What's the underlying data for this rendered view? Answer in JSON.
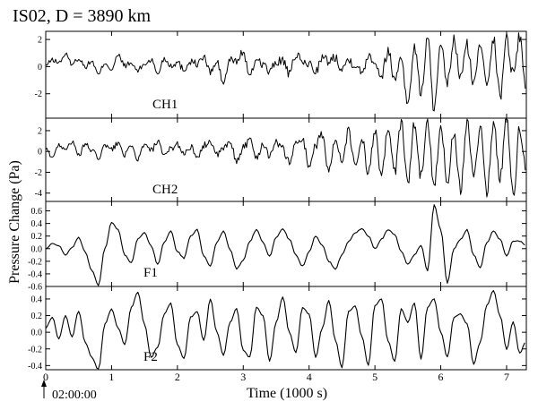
{
  "title": "IS02, D = 3890 km",
  "ylabel": "Pressure Change (Pa)",
  "xlabel": "Time (1000 s)",
  "start_time": "02:00:00",
  "chart_data": [
    {
      "type": "line",
      "name": "CH1",
      "ylim": [
        -3.8,
        2.6
      ],
      "yticks": [
        "2",
        "0",
        "-2"
      ],
      "ytick_values": [
        2,
        0,
        -2
      ],
      "xlim": [
        0,
        7.3
      ],
      "x_step": 0.1,
      "y": [
        0.1,
        0.5,
        0.3,
        0.9,
        0.2,
        0.6,
        0.0,
        0.4,
        -0.6,
        0.3,
        -0.2,
        0.8,
        0.1,
        0.2,
        -0.3,
        0.2,
        0.5,
        -0.5,
        0.6,
        0.1,
        0.3,
        -0.2,
        0.4,
        0.2,
        0.7,
        -0.4,
        0.3,
        -1.2,
        0.5,
        0.4,
        1.1,
        -0.8,
        0.6,
        0.2,
        -0.4,
        0.3,
        0.5,
        -0.6,
        0.9,
        0.3,
        0.2,
        -0.3,
        0.6,
        0.4,
        0.7,
        -0.1,
        0.5,
        0.2,
        -0.5,
        0.9,
        0.4,
        -0.7,
        1.2,
        -1.0,
        0.8,
        -2.9,
        1.5,
        -2.0,
        2.1,
        -3.2,
        1.4,
        -1.2,
        1.9,
        -0.8,
        1.6,
        -1.4,
        1.8,
        -1.0,
        2.0,
        -2.2,
        2.1,
        -0.6,
        2.3,
        -1.8
      ]
    },
    {
      "type": "line",
      "name": "CH2",
      "ylim": [
        -4.8,
        3.2
      ],
      "yticks": [
        "2",
        "0",
        "-2",
        "-4"
      ],
      "ytick_values": [
        2,
        0,
        -2,
        -4
      ],
      "xlim": [
        0,
        7.3
      ],
      "x_step": 0.1,
      "y": [
        0.2,
        -0.5,
        0.6,
        0.3,
        0.9,
        -0.4,
        0.7,
        0.1,
        -0.6,
        0.5,
        0.2,
        0.8,
        -0.3,
        0.4,
        -0.7,
        0.6,
        0.1,
        0.9,
        -0.5,
        0.3,
        0.7,
        -0.2,
        0.5,
        -0.8,
        0.6,
        1.0,
        -0.4,
        0.3,
        0.8,
        -0.9,
        0.4,
        1.1,
        -0.6,
        0.7,
        -0.3,
        0.9,
        0.2,
        -1.0,
        0.8,
        1.2,
        -1.4,
        0.6,
        1.6,
        -1.8,
        1.1,
        -1.2,
        2.0,
        -1.6,
        1.4,
        -2.2,
        1.9,
        -2.6,
        2.4,
        -2.0,
        2.8,
        -3.0,
        2.6,
        -2.4,
        3.0,
        -3.4,
        2.5,
        -2.8,
        1.8,
        -3.6,
        2.9,
        -2.2,
        2.4,
        -3.8,
        2.7,
        -2.5,
        3.1,
        -4.2,
        2.2,
        -2.0
      ]
    },
    {
      "type": "line",
      "name": "F1",
      "ylim": [
        -0.6,
        0.75
      ],
      "yticks": [
        "0.6",
        "0.4",
        "0.2",
        "0.0",
        "-0.2",
        "-0.4",
        "-0.6"
      ],
      "ytick_values": [
        0.6,
        0.4,
        0.2,
        0.0,
        -0.2,
        -0.4,
        -0.6
      ],
      "xlim": [
        0,
        7.3
      ],
      "x_step": 0.1,
      "y": [
        0.0,
        0.08,
        0.05,
        -0.1,
        0.02,
        0.18,
        -0.05,
        -0.35,
        -0.58,
        0.0,
        0.42,
        0.3,
        -0.1,
        -0.22,
        0.15,
        0.25,
        0.05,
        -0.25,
        0.1,
        0.28,
        -0.05,
        -0.15,
        0.2,
        0.3,
        -0.12,
        -0.28,
        0.1,
        0.28,
        -0.02,
        -0.32,
        -0.18,
        0.12,
        0.3,
        0.1,
        -0.12,
        0.18,
        0.32,
        0.15,
        -0.1,
        -0.28,
        -0.05,
        0.2,
        0.05,
        -0.2,
        -0.32,
        -0.1,
        0.12,
        0.25,
        0.32,
        0.2,
        0.0,
        0.15,
        0.3,
        0.22,
        -0.05,
        -0.25,
        -0.1,
        0.05,
        -0.35,
        0.7,
        0.3,
        -0.55,
        0.0,
        0.15,
        0.3,
        -0.1,
        -0.3,
        0.1,
        0.28,
        0.15,
        -0.12,
        0.12,
        0.12,
        0.05
      ]
    },
    {
      "type": "line",
      "name": "F2",
      "ylim": [
        -0.45,
        0.55
      ],
      "yticks": [
        "0.4",
        "0.2",
        "0.0",
        "-0.2",
        "-0.4"
      ],
      "ytick_values": [
        0.4,
        0.2,
        0.0,
        -0.2,
        -0.4
      ],
      "xlim": [
        0,
        7.3
      ],
      "x_step": 0.1,
      "y": [
        0.05,
        0.18,
        -0.08,
        0.2,
        -0.05,
        0.25,
        -0.12,
        -0.3,
        -0.45,
        0.1,
        0.28,
        0.05,
        -0.15,
        0.3,
        0.48,
        0.1,
        -0.3,
        -0.18,
        0.22,
        0.35,
        -0.15,
        -0.32,
        0.18,
        0.25,
        -0.1,
        0.4,
        0.0,
        -0.28,
        0.12,
        0.28,
        -0.22,
        -0.3,
        0.3,
        0.2,
        -0.35,
        0.12,
        0.42,
        0.0,
        -0.25,
        0.3,
        0.22,
        -0.3,
        0.05,
        0.38,
        -0.1,
        -0.42,
        0.25,
        0.32,
        -0.05,
        -0.4,
        0.32,
        0.4,
        -0.1,
        -0.35,
        0.28,
        0.12,
        0.35,
        -0.32,
        0.3,
        0.4,
        0.0,
        -0.3,
        0.18,
        0.22,
        0.1,
        -0.38,
        -0.12,
        0.32,
        0.5,
        0.2,
        -0.2,
        0.12,
        -0.25,
        -0.1
      ]
    }
  ],
  "xaxis": {
    "ticks": [
      "0",
      "1",
      "2",
      "3",
      "4",
      "5",
      "6",
      "7"
    ],
    "tick_values": [
      0,
      1,
      2,
      3,
      4,
      5,
      6,
      7
    ],
    "xlim": [
      0,
      7.3
    ]
  }
}
